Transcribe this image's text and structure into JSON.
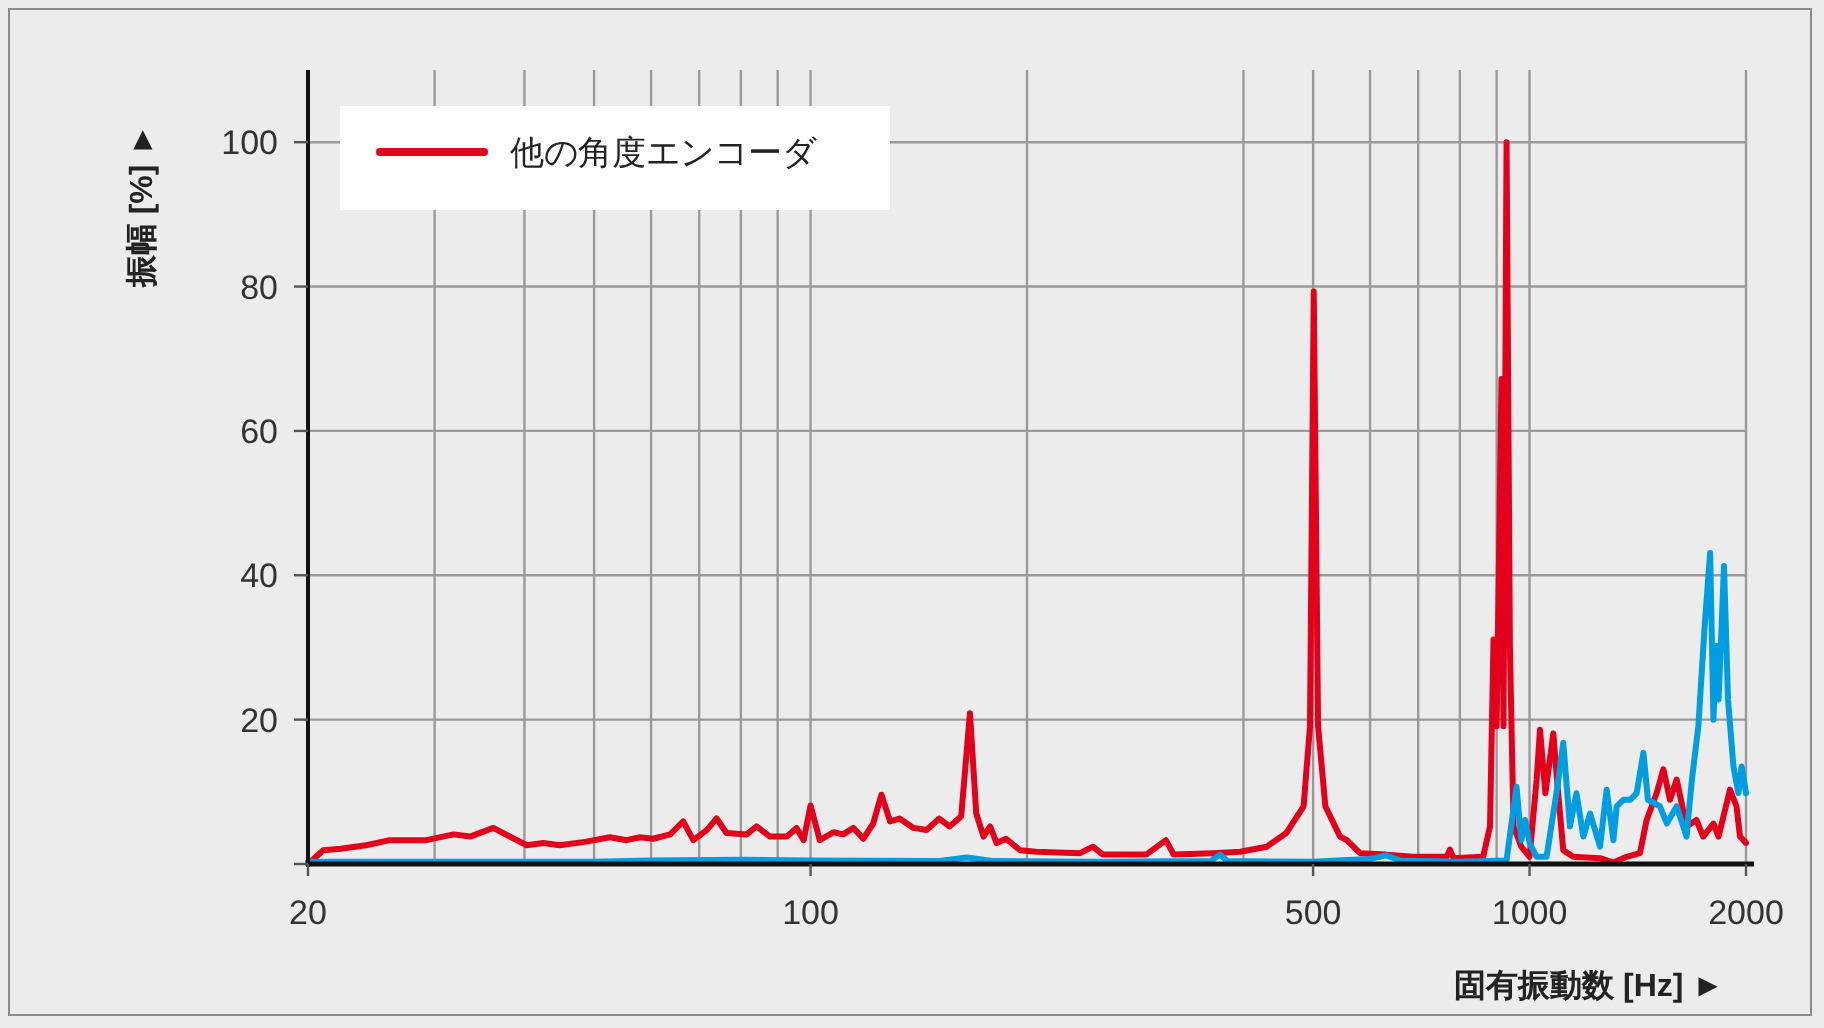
{
  "chart_data": {
    "type": "line",
    "xlabel": "固有振動数 [Hz] ►",
    "ylabel": "振幅 [%] ►",
    "log": "x",
    "grid": true,
    "legend": "top left",
    "xlim": [
      20,
      2000
    ],
    "xticks": [
      20,
      {
        "value": 30,
        "label": null
      },
      {
        "value": 40,
        "label": null
      },
      {
        "value": 50,
        "label": null
      },
      {
        "value": 60,
        "label": null
      },
      {
        "value": 70,
        "label": null
      },
      {
        "value": 80,
        "label": null
      },
      {
        "value": 90,
        "label": null
      },
      100,
      {
        "value": 200,
        "label": null
      },
      {
        "value": 400,
        "label": null
      },
      500,
      {
        "value": 600,
        "label": null
      },
      {
        "value": 700,
        "label": null
      },
      {
        "value": 800,
        "label": null
      },
      {
        "value": 900,
        "label": null
      },
      1000,
      2000
    ],
    "ylim": [
      0,
      110
    ],
    "yticks": [
      {
        "value": 0,
        "label": null
      },
      20,
      40,
      60,
      80,
      100
    ],
    "series": [
      {
        "name": "他の角度エンコーダ",
        "color": "#e2001a",
        "x": [
          20,
          21,
          22.2,
          24.1,
          26,
          29.2,
          31.9,
          33.6,
          36.2,
          40.3,
          42.5,
          44.8,
          48.8,
          52.6,
          55.5,
          57.9,
          60.4,
          63.8,
          66.5,
          68.7,
          71.7,
          74,
          76.4,
          81.5,
          84.1,
          87.8,
          92.7,
          95.6,
          97.8,
          100,
          103,
          107.6,
          111,
          114.7,
          118.4,
          122.2,
          125.5,
          129,
          133,
          139,
          145,
          151,
          156,
          162,
          166.6,
          170,
          174,
          177.7,
          181.5,
          187,
          195.6,
          206,
          237,
          247,
          255,
          293,
          312,
          320,
          363,
          396,
          431,
          459,
          485,
          495,
          501,
          508,
          520,
          545,
          557,
          581,
          632,
          689,
          767,
          775,
          784,
          862,
          881,
          891,
          900,
          914,
          920,
          929,
          939,
          950,
          974,
          1000,
          1023,
          1034,
          1052,
          1079,
          1096,
          1114,
          1150,
          1253,
          1308,
          1364,
          1424,
          1455,
          1502,
          1535,
          1568,
          1602,
          1653,
          1706,
          1744,
          1802,
          1832,
          1900,
          1940,
          1962,
          2000
        ],
        "values": [
          0,
          1.9,
          2.1,
          2.6,
          3.3,
          3.3,
          4.1,
          3.8,
          5.0,
          2.6,
          2.9,
          2.6,
          3.1,
          3.7,
          3.3,
          3.7,
          3.5,
          4.1,
          5.9,
          3.3,
          4.7,
          6.3,
          4.3,
          4.1,
          5.2,
          3.8,
          3.8,
          5.0,
          3.3,
          8.1,
          3.3,
          4.4,
          4.1,
          5.0,
          3.5,
          5.6,
          9.6,
          5.9,
          6.3,
          5.0,
          4.7,
          6.3,
          5.2,
          6.6,
          20.9,
          7.0,
          3.8,
          5.2,
          2.9,
          3.5,
          1.9,
          1.7,
          1.5,
          2.4,
          1.3,
          1.3,
          3.3,
          1.3,
          1.5,
          1.7,
          2.4,
          4.3,
          8.0,
          19.1,
          79.3,
          19.1,
          8.0,
          3.8,
          3.3,
          1.5,
          1.3,
          1.0,
          1.0,
          2.0,
          0.8,
          1.0,
          5.2,
          31.1,
          19.1,
          67.2,
          19.1,
          100,
          30.2,
          5.2,
          2.4,
          1.0,
          11.7,
          18.6,
          9.8,
          18.1,
          9.8,
          1.9,
          1.0,
          0.8,
          0.2,
          1.0,
          1.5,
          6.1,
          9.8,
          13.1,
          8.9,
          11.7,
          5.2,
          6.1,
          3.8,
          5.6,
          3.8,
          10.3,
          8.0,
          3.8,
          2.9
        ]
      },
      {
        "color": "#009ee0",
        "x": [
          20,
          50,
          60,
          80,
          100,
          150,
          165,
          180,
          250,
          360,
          371,
          380,
          500,
          540,
          600,
          632,
          660,
          800,
          929,
          959,
          974,
          986,
          1000,
          1023,
          1056,
          1090,
          1114,
          1138,
          1162,
          1188,
          1214,
          1253,
          1280,
          1308,
          1322,
          1350,
          1380,
          1409,
          1440,
          1461,
          1518,
          1552,
          1602,
          1653,
          1682,
          1717,
          1752,
          1783,
          1802,
          1820,
          1832,
          1864,
          1888,
          1921,
          1952,
          1972,
          2000
        ],
        "values": [
          0.3,
          0.3,
          0.5,
          0.6,
          0.5,
          0.4,
          0.9,
          0.4,
          0.3,
          0.4,
          1.3,
          0.4,
          0.3,
          0.5,
          0.7,
          1.2,
          0.5,
          0.3,
          0.5,
          10.7,
          3.3,
          6.1,
          2.9,
          1.0,
          1.0,
          9.8,
          16.8,
          5.2,
          9.8,
          3.8,
          7.0,
          2.4,
          10.3,
          3.3,
          8.0,
          8.9,
          8.9,
          9.8,
          15.4,
          8.9,
          8.0,
          5.6,
          8.0,
          3.8,
          11.7,
          19.1,
          33.0,
          43.1,
          20.0,
          30.2,
          22.8,
          41.3,
          22.8,
          13.5,
          9.8,
          13.5,
          9.8
        ]
      }
    ]
  }
}
